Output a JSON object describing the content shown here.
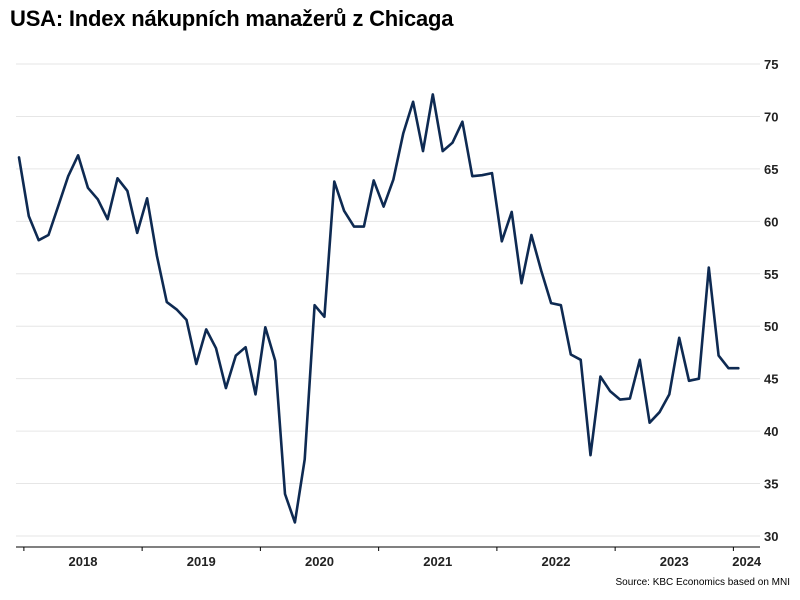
{
  "title": "USA: Index nákupních manažerů z Chicaga",
  "source": "Source: KBC Economics based on MNI",
  "colors": {
    "line": "#0e2a52",
    "grid": "#e6e6e6",
    "text": "#222222"
  },
  "chart_data": {
    "type": "line",
    "title": "USA: Index nákupních manažerů z Chicaga",
    "xlabel": "",
    "ylabel": "",
    "ylim": [
      30,
      75
    ],
    "yticks": [
      30,
      35,
      40,
      45,
      50,
      55,
      60,
      65,
      70,
      75
    ],
    "y_axis_position": "right",
    "grid": true,
    "legend": "none",
    "xlim": [
      "2017-12",
      "2024-03"
    ],
    "xticks": [
      "2018",
      "2019",
      "2020",
      "2021",
      "2022",
      "2023",
      "2024"
    ],
    "series": [
      {
        "x": [
          "2017-12",
          "2018-01",
          "2018-02",
          "2018-03",
          "2018-04",
          "2018-05",
          "2018-06",
          "2018-07",
          "2018-08",
          "2018-09",
          "2018-10",
          "2018-11",
          "2018-12",
          "2019-01",
          "2019-02",
          "2019-03",
          "2019-04",
          "2019-05",
          "2019-06",
          "2019-07",
          "2019-08",
          "2019-09",
          "2019-10",
          "2019-11",
          "2019-12",
          "2020-01",
          "2020-02",
          "2020-03",
          "2020-04",
          "2020-05",
          "2020-06",
          "2020-07",
          "2020-08",
          "2020-09",
          "2020-10",
          "2020-11",
          "2020-12",
          "2021-01",
          "2021-02",
          "2021-03",
          "2021-04",
          "2021-05",
          "2021-06",
          "2021-07",
          "2021-08",
          "2021-09",
          "2021-10",
          "2021-11",
          "2021-12",
          "2022-01",
          "2022-02",
          "2022-03",
          "2022-04",
          "2022-05",
          "2022-06",
          "2022-07",
          "2022-08",
          "2022-09",
          "2022-10",
          "2022-11",
          "2022-12",
          "2023-01",
          "2023-02",
          "2023-03",
          "2023-04",
          "2023-05",
          "2023-06",
          "2023-07",
          "2023-08",
          "2023-09",
          "2023-10",
          "2023-11",
          "2023-12",
          "2024-01"
        ],
        "values": [
          66.1,
          60.5,
          58.2,
          58.7,
          61.5,
          64.3,
          66.3,
          63.2,
          62.1,
          60.2,
          64.1,
          62.9,
          58.9,
          62.2,
          56.7,
          52.3,
          51.6,
          50.6,
          46.4,
          49.7,
          47.9,
          44.1,
          47.2,
          48.0,
          43.5,
          49.9,
          46.7,
          34.0,
          31.3,
          37.3,
          52.0,
          50.9,
          63.8,
          61.0,
          59.5,
          59.5,
          63.9,
          61.4,
          64.0,
          68.4,
          71.4,
          66.7,
          72.1,
          66.7,
          67.5,
          69.5,
          64.3,
          64.4,
          64.6,
          58.1,
          60.9,
          54.1,
          58.7,
          55.3,
          52.2,
          52.0,
          47.3,
          46.8,
          37.7,
          45.2,
          43.8,
          43.0,
          43.1,
          46.8,
          40.8,
          41.8,
          43.5,
          48.9,
          44.8,
          45.0,
          55.6,
          47.2,
          46.0,
          46.0
        ]
      }
    ]
  }
}
